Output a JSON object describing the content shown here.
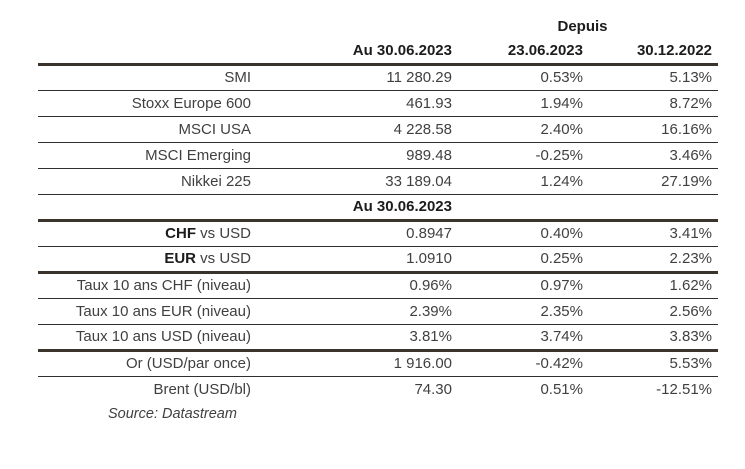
{
  "table": {
    "header": {
      "depuis": "Depuis",
      "columns": [
        "Au 30.06.2023",
        "23.06.2023",
        "30.12.2022"
      ]
    },
    "rows": [
      {
        "label_bold": "",
        "label": "SMI",
        "values": [
          "11 280.29",
          "0.53%",
          "5.13%"
        ]
      },
      {
        "label_bold": "",
        "label": "Stoxx Europe 600",
        "values": [
          "461.93",
          "1.94%",
          "8.72%"
        ]
      },
      {
        "label_bold": "",
        "label": "MSCI USA",
        "values": [
          "4 228.58",
          "2.40%",
          "16.16%"
        ]
      },
      {
        "label_bold": "",
        "label": "MSCI Emerging",
        "values": [
          "989.48",
          "-0.25%",
          "3.46%"
        ]
      },
      {
        "label_bold": "",
        "label": "Nikkei 225",
        "values": [
          "33 189.04",
          "1.24%",
          "27.19%"
        ]
      },
      {
        "type": "section",
        "label": "Au 30.06.2023"
      },
      {
        "label_bold": "CHF",
        "label": " vs USD",
        "values": [
          "0.8947",
          "0.40%",
          "3.41%"
        ]
      },
      {
        "label_bold": "EUR",
        "label": " vs USD",
        "values": [
          "1.0910",
          "0.25%",
          "2.23%"
        ]
      },
      {
        "label_bold": "",
        "label": "Taux 10 ans CHF (niveau)",
        "values": [
          "0.96%",
          "0.97%",
          "1.62%"
        ]
      },
      {
        "label_bold": "",
        "label": "Taux 10 ans EUR (niveau)",
        "values": [
          "2.39%",
          "2.35%",
          "2.56%"
        ]
      },
      {
        "label_bold": "",
        "label": "Taux 10 ans USD (niveau)",
        "values": [
          "3.81%",
          "3.74%",
          "3.83%"
        ]
      },
      {
        "label_bold": "",
        "label": "Or (USD/par once)",
        "values": [
          "1 916.00",
          "-0.42%",
          "5.53%"
        ]
      },
      {
        "label_bold": "",
        "label": "Brent (USD/bl)",
        "values": [
          "74.30",
          "0.51%",
          "-12.51%"
        ]
      }
    ],
    "source": "Source: Datastream"
  },
  "colors": {
    "text": "#404040",
    "strong": "#1c1c1c",
    "thin": "#2f2f2f",
    "thick": "#3a342c"
  }
}
